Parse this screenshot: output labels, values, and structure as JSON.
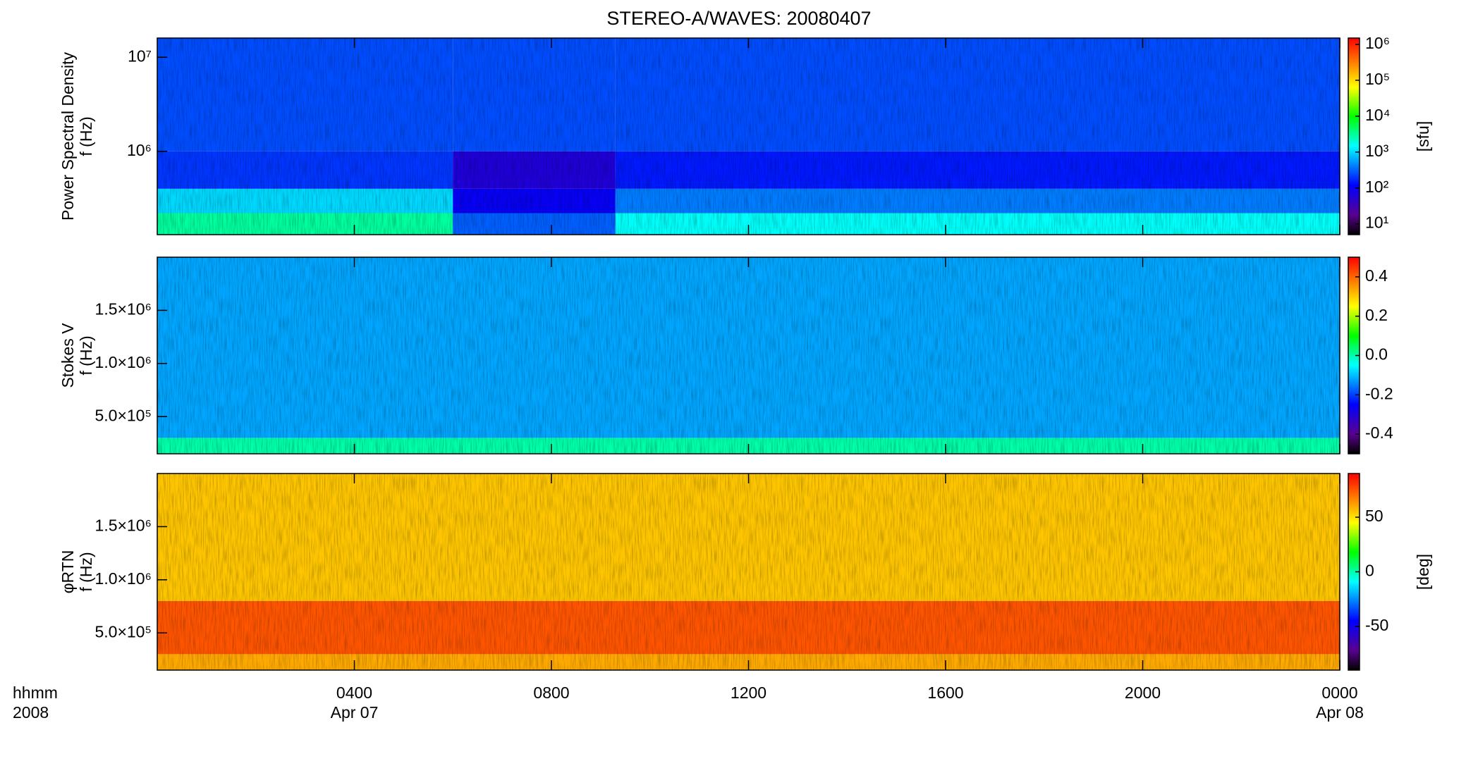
{
  "title": "STEREO-A/WAVES: 20080407",
  "time_unit": "hhmm",
  "year": "2008",
  "chart_data": [
    {
      "type": "heatmap",
      "ylabel": "Power Spectral Density",
      "ylabel2": "f (Hz)",
      "ylog": true,
      "ylim": [
        130000,
        16000000
      ],
      "yticks": [
        {
          "value": 1000000,
          "label": "10⁶"
        },
        {
          "value": 10000000,
          "label": "10⁷"
        }
      ],
      "xlim": [
        0,
        24
      ],
      "x_edges": [
        0,
        6,
        9.3,
        24
      ],
      "y_edges": [
        130000,
        220000,
        400000,
        1000000,
        16000000
      ],
      "z": [
        [
          3000,
          300,
          1500
        ],
        [
          1000,
          100,
          400
        ],
        [
          200,
          60,
          150
        ],
        [
          250,
          250,
          250
        ]
      ],
      "clog": true,
      "clim": [
        5,
        1500000
      ],
      "cticks": [
        {
          "value": 10,
          "label": "10¹"
        },
        {
          "value": 100,
          "label": "10²"
        },
        {
          "value": 1000,
          "label": "10³"
        },
        {
          "value": 10000,
          "label": "10⁴"
        },
        {
          "value": 100000,
          "label": "10⁵"
        },
        {
          "value": 1000000,
          "label": "10⁶"
        }
      ],
      "clabel": "[sfu]"
    },
    {
      "type": "heatmap",
      "ylabel": "Stokes V",
      "ylabel2": "f (Hz)",
      "ylog": false,
      "ylim": [
        150000,
        2000000
      ],
      "yticks": [
        {
          "value": 500000,
          "label": "5.0×10⁵"
        },
        {
          "value": 1000000,
          "label": "1.0×10⁶"
        },
        {
          "value": 1500000,
          "label": "1.5×10⁶"
        }
      ],
      "xlim": [
        0,
        24
      ],
      "x_edges": [
        0,
        24
      ],
      "y_edges": [
        150000,
        300000,
        2000000
      ],
      "z": [
        [
          0.0
        ],
        [
          -0.12
        ]
      ],
      "clog": false,
      "clim": [
        -0.5,
        0.5
      ],
      "cticks": [
        -0.4,
        -0.2,
        {
          "value": 0,
          "label": "0.0"
        },
        0.2,
        0.4
      ]
    },
    {
      "type": "heatmap",
      "ylabel": "φRTN",
      "ylabel2": "f (Hz)",
      "ylog": false,
      "ylim": [
        150000,
        2000000
      ],
      "yticks": [
        {
          "value": 500000,
          "label": "5.0×10⁵"
        },
        {
          "value": 1000000,
          "label": "1.0×10⁶"
        },
        {
          "value": 1500000,
          "label": "1.5×10⁶"
        }
      ],
      "xlim": [
        0,
        24
      ],
      "xticks": [
        {
          "value": 4,
          "label": "0400"
        },
        {
          "value": 8,
          "label": "0800"
        },
        {
          "value": 12,
          "label": "1200"
        },
        {
          "value": 16,
          "label": "1600"
        },
        {
          "value": 20,
          "label": "2000"
        },
        {
          "value": 24,
          "label": "0000"
        }
      ],
      "date_labels": [
        {
          "value": 4,
          "label": "Apr 07"
        },
        {
          "value": 24,
          "label": "Apr 08"
        }
      ],
      "x_edges": [
        0,
        24
      ],
      "y_edges": [
        150000,
        300000,
        800000,
        2000000
      ],
      "z": [
        [
          60
        ],
        [
          75
        ],
        [
          55
        ]
      ],
      "clog": false,
      "clim": [
        -90,
        90
      ],
      "cticks": [
        -50,
        0,
        50
      ],
      "clabel": "[deg]"
    }
  ]
}
